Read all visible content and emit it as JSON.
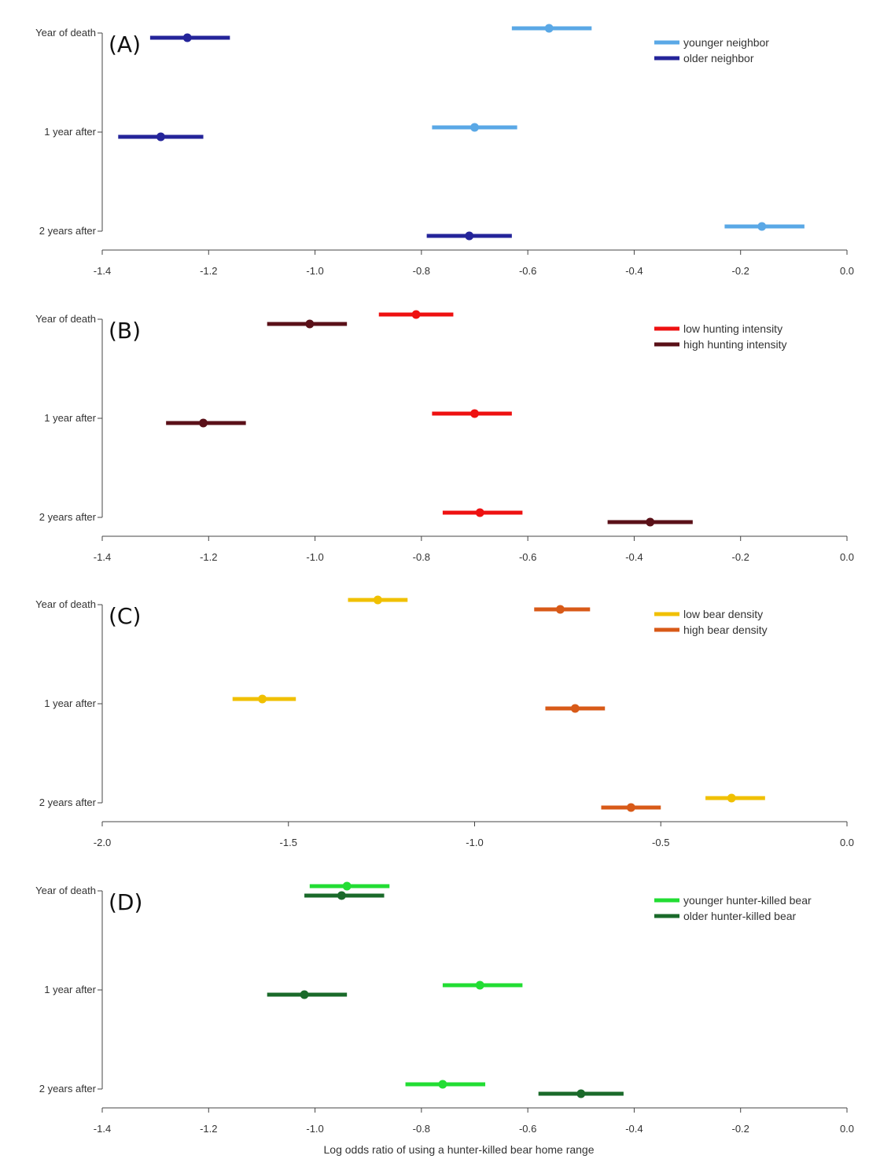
{
  "chart_data": [
    {
      "type": "scatter",
      "panel_label": "(A)",
      "categories": [
        "Year of death",
        "1 year after",
        "2 years after"
      ],
      "xlim": [
        -1.4,
        0.0
      ],
      "xticks": [
        "-1.4",
        "-1.2",
        "-1.0",
        "-0.8",
        "-0.6",
        "-0.4",
        "-0.2",
        "0.0"
      ],
      "tick_values": [
        -1.4,
        -1.2,
        -1.0,
        -0.8,
        -0.6,
        -0.4,
        -0.2,
        0.0
      ],
      "legend_position": "top-right",
      "series": [
        {
          "name": "younger neighbor",
          "color": "#5aa8e6",
          "points": [
            {
              "est": -0.56,
              "lo": -0.63,
              "hi": -0.48
            },
            {
              "est": -0.7,
              "lo": -0.78,
              "hi": -0.62
            },
            {
              "est": -0.16,
              "lo": -0.23,
              "hi": -0.08
            }
          ]
        },
        {
          "name": "older neighbor",
          "color": "#24249a",
          "points": [
            {
              "est": -1.24,
              "lo": -1.31,
              "hi": -1.16
            },
            {
              "est": -1.29,
              "lo": -1.37,
              "hi": -1.21
            },
            {
              "est": -0.71,
              "lo": -0.79,
              "hi": -0.63
            }
          ]
        }
      ]
    },
    {
      "type": "scatter",
      "panel_label": "(B)",
      "categories": [
        "Year of death",
        "1 year after",
        "2 years after"
      ],
      "xlim": [
        -1.4,
        0.0
      ],
      "xticks": [
        "-1.4",
        "-1.2",
        "-1.0",
        "-0.8",
        "-0.6",
        "-0.4",
        "-0.2",
        "0.0"
      ],
      "tick_values": [
        -1.4,
        -1.2,
        -1.0,
        -0.8,
        -0.6,
        -0.4,
        -0.2,
        0.0
      ],
      "legend_position": "top-right",
      "series": [
        {
          "name": "low hunting intensity",
          "color": "#ee1111",
          "points": [
            {
              "est": -0.81,
              "lo": -0.88,
              "hi": -0.74
            },
            {
              "est": -0.7,
              "lo": -0.78,
              "hi": -0.63
            },
            {
              "est": -0.69,
              "lo": -0.76,
              "hi": -0.61
            }
          ]
        },
        {
          "name": "high hunting intensity",
          "color": "#5a1018",
          "points": [
            {
              "est": -1.01,
              "lo": -1.09,
              "hi": -0.94
            },
            {
              "est": -1.21,
              "lo": -1.28,
              "hi": -1.13
            },
            {
              "est": -0.37,
              "lo": -0.45,
              "hi": -0.29
            }
          ]
        }
      ]
    },
    {
      "type": "scatter",
      "panel_label": "(C)",
      "categories": [
        "Year of death",
        "1 year after",
        "2 years after"
      ],
      "xlim": [
        -2.0,
        0.0
      ],
      "xticks": [
        "-2.0",
        "-1.5",
        "-1.0",
        "-0.5",
        "0.0"
      ],
      "tick_values": [
        -2.0,
        -1.5,
        -1.0,
        -0.5,
        0.0
      ],
      "legend_position": "top-right",
      "series": [
        {
          "name": "low bear density",
          "color": "#f0c000",
          "points": [
            {
              "est": -1.26,
              "lo": -1.34,
              "hi": -1.18
            },
            {
              "est": -1.57,
              "lo": -1.65,
              "hi": -1.48
            },
            {
              "est": -0.31,
              "lo": -0.38,
              "hi": -0.22
            }
          ]
        },
        {
          "name": "high bear density",
          "color": "#d85a18",
          "points": [
            {
              "est": -0.77,
              "lo": -0.84,
              "hi": -0.69
            },
            {
              "est": -0.73,
              "lo": -0.81,
              "hi": -0.65
            },
            {
              "est": -0.58,
              "lo": -0.66,
              "hi": -0.5
            }
          ]
        }
      ]
    },
    {
      "type": "scatter",
      "panel_label": "(D)",
      "categories": [
        "Year of death",
        "1 year after",
        "2 years after"
      ],
      "xlim": [
        -1.4,
        0.0
      ],
      "xticks": [
        "-1.4",
        "-1.2",
        "-1.0",
        "-0.8",
        "-0.6",
        "-0.4",
        "-0.2",
        "0.0"
      ],
      "tick_values": [
        -1.4,
        -1.2,
        -1.0,
        -0.8,
        -0.6,
        -0.4,
        -0.2,
        0.0
      ],
      "xlabel": "Log odds ratio of using a hunter-killed bear home range",
      "legend_position": "top-right",
      "series": [
        {
          "name": "younger hunter-killed bear",
          "color": "#22dd33",
          "points": [
            {
              "est": -0.94,
              "lo": -1.01,
              "hi": -0.86
            },
            {
              "est": -0.69,
              "lo": -0.76,
              "hi": -0.61
            },
            {
              "est": -0.76,
              "lo": -0.83,
              "hi": -0.68
            }
          ]
        },
        {
          "name": "older hunter-killed bear",
          "color": "#1a6a2a",
          "points": [
            {
              "est": -0.95,
              "lo": -1.02,
              "hi": -0.87
            },
            {
              "est": -1.02,
              "lo": -1.09,
              "hi": -0.94
            },
            {
              "est": -0.5,
              "lo": -0.58,
              "hi": -0.42
            }
          ]
        }
      ]
    }
  ]
}
